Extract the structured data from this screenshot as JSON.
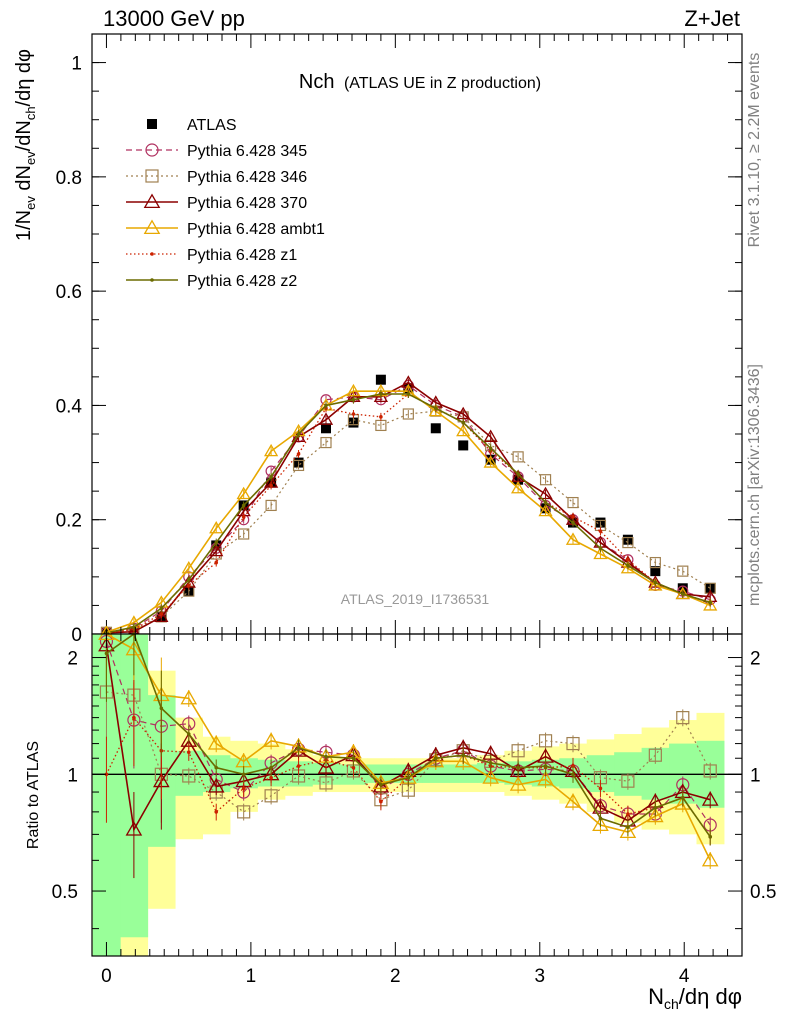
{
  "header": {
    "left": "13000 GeV pp",
    "right": "Z+Jet"
  },
  "side_labels": {
    "top": "Rivet 3.1.10, ≥ 2.2M events",
    "bottom": "mcplots.cern.ch [arXiv:1306.3436]"
  },
  "watermark": "ATLAS_2019_I1736531",
  "chart_data": [
    {
      "type": "line",
      "title": "Nch",
      "subtitle": "(ATLAS UE in Z production)",
      "ylabel": "1/N_ev dN_ev/dN_ch/dη dφ",
      "xlim": [
        -0.1,
        4.4
      ],
      "ylim": [
        0,
        1.05
      ],
      "y_ticks": [
        "0",
        "0.2",
        "0.4",
        "0.6",
        "0.8",
        "1"
      ],
      "x": [
        0.0,
        0.19,
        0.38,
        0.57,
        0.76,
        0.95,
        1.14,
        1.33,
        1.52,
        1.71,
        1.9,
        2.09,
        2.28,
        2.47,
        2.66,
        2.85,
        3.04,
        3.23,
        3.42,
        3.61,
        3.8,
        3.99,
        4.18
      ],
      "series": [
        {
          "name": "ATLAS",
          "color": "#000000",
          "values": [
            0.002,
            0.005,
            0.03,
            0.075,
            0.155,
            0.225,
            0.265,
            0.3,
            0.36,
            0.37,
            0.445,
            0.43,
            0.36,
            0.33,
            0.305,
            0.27,
            0.22,
            0.195,
            0.195,
            0.165,
            0.11,
            0.08,
            0.08
          ]
        },
        {
          "name": "Pythia 6.428 345",
          "color": "#b03060",
          "values": [
            0.003,
            0.01,
            0.04,
            0.1,
            0.15,
            0.2,
            0.285,
            0.345,
            0.41,
            0.415,
            0.41,
            0.435,
            0.4,
            0.38,
            0.315,
            0.275,
            0.225,
            0.2,
            0.16,
            0.13,
            0.085,
            0.075,
            0.06
          ]
        },
        {
          "name": "Pythia 6.428 346",
          "color": "#a08050",
          "values": [
            0.003,
            0.008,
            0.03,
            0.075,
            0.14,
            0.175,
            0.225,
            0.295,
            0.335,
            0.375,
            0.365,
            0.385,
            0.39,
            0.38,
            0.33,
            0.31,
            0.27,
            0.23,
            0.19,
            0.16,
            0.125,
            0.11,
            0.08
          ]
        },
        {
          "name": "Pythia 6.428 370",
          "color": "#8b0000",
          "values": [
            0.002,
            0.004,
            0.03,
            0.09,
            0.145,
            0.215,
            0.265,
            0.345,
            0.375,
            0.415,
            0.415,
            0.44,
            0.405,
            0.385,
            0.345,
            0.275,
            0.245,
            0.2,
            0.16,
            0.125,
            0.09,
            0.07,
            0.065
          ]
        },
        {
          "name": "Pythia 6.428 ambt1",
          "color": "#e8a800",
          "values": [
            0.003,
            0.02,
            0.055,
            0.115,
            0.185,
            0.245,
            0.32,
            0.355,
            0.4,
            0.425,
            0.425,
            0.425,
            0.39,
            0.355,
            0.3,
            0.255,
            0.215,
            0.165,
            0.14,
            0.115,
            0.085,
            0.07,
            0.05
          ]
        },
        {
          "name": "Pythia 6.428 z1",
          "color": "#cc2200",
          "values": [
            0.002,
            0.008,
            0.035,
            0.085,
            0.125,
            0.205,
            0.26,
            0.315,
            0.395,
            0.385,
            0.38,
            0.42,
            0.395,
            0.37,
            0.32,
            0.28,
            0.23,
            0.205,
            0.18,
            0.13,
            0.09,
            0.07,
            0.055
          ]
        },
        {
          "name": "Pythia 6.428 z2",
          "color": "#6b6b00",
          "values": [
            0.002,
            0.012,
            0.045,
            0.095,
            0.16,
            0.225,
            0.275,
            0.35,
            0.4,
            0.41,
            0.42,
            0.42,
            0.395,
            0.37,
            0.325,
            0.28,
            0.23,
            0.195,
            0.15,
            0.12,
            0.09,
            0.07,
            0.055
          ]
        }
      ]
    },
    {
      "type": "line",
      "ylabel": "Ratio to ATLAS",
      "xlabel": "N_ch/dη dφ",
      "xlim": [
        -0.1,
        4.4
      ],
      "ylim": [
        0.34,
        2.3
      ],
      "y_scale": "log",
      "y_ticks": [
        "0.5",
        "1",
        "2"
      ],
      "x_ticks": [
        "0",
        "1",
        "2",
        "3",
        "4"
      ],
      "reference": 1,
      "x": [
        0.0,
        0.19,
        0.38,
        0.57,
        0.76,
        0.95,
        1.14,
        1.33,
        1.52,
        1.71,
        1.9,
        2.09,
        2.28,
        2.47,
        2.66,
        2.85,
        3.04,
        3.23,
        3.42,
        3.61,
        3.8,
        3.99,
        4.18
      ],
      "band_green": [
        [
          0.15,
          2.3
        ],
        [
          0.38,
          2.3
        ],
        [
          0.65,
          1.6
        ],
        [
          0.88,
          1.15
        ],
        [
          0.9,
          1.12
        ],
        [
          0.92,
          1.1
        ],
        [
          0.93,
          1.09
        ],
        [
          0.93,
          1.08
        ],
        [
          0.94,
          1.07
        ],
        [
          0.94,
          1.06
        ],
        [
          0.95,
          1.06
        ],
        [
          0.95,
          1.06
        ],
        [
          0.95,
          1.06
        ],
        [
          0.95,
          1.06
        ],
        [
          0.95,
          1.07
        ],
        [
          0.94,
          1.08
        ],
        [
          0.93,
          1.09
        ],
        [
          0.92,
          1.1
        ],
        [
          0.9,
          1.12
        ],
        [
          0.88,
          1.14
        ],
        [
          0.86,
          1.17
        ],
        [
          0.84,
          1.2
        ],
        [
          0.82,
          1.22
        ]
      ],
      "band_yellow": [
        [
          0.1,
          2.3
        ],
        [
          0.34,
          2.3
        ],
        [
          0.45,
          1.85
        ],
        [
          0.68,
          1.4
        ],
        [
          0.7,
          1.25
        ],
        [
          0.8,
          1.22
        ],
        [
          0.86,
          1.2
        ],
        [
          0.88,
          1.16
        ],
        [
          0.9,
          1.12
        ],
        [
          0.9,
          1.1
        ],
        [
          0.9,
          1.1
        ],
        [
          0.9,
          1.1
        ],
        [
          0.9,
          1.1
        ],
        [
          0.9,
          1.1
        ],
        [
          0.9,
          1.12
        ],
        [
          0.88,
          1.15
        ],
        [
          0.86,
          1.18
        ],
        [
          0.84,
          1.2
        ],
        [
          0.8,
          1.23
        ],
        [
          0.75,
          1.27
        ],
        [
          0.72,
          1.32
        ],
        [
          0.7,
          1.38
        ],
        [
          0.66,
          1.44
        ]
      ],
      "series": [
        {
          "name": "Pythia 6.428 345",
          "values": [
            2.2,
            1.38,
            1.33,
            1.35,
            0.97,
            0.9,
            1.07,
            1.16,
            1.14,
            1.12,
            0.92,
            1.0,
            1.1,
            1.15,
            1.05,
            1.02,
            1.03,
            1.02,
            0.83,
            0.79,
            0.79,
            0.94,
            0.74
          ]
        },
        {
          "name": "Pythia 6.428 346",
          "values": [
            1.63,
            1.6,
            1.0,
            0.99,
            0.9,
            0.8,
            0.88,
            0.99,
            0.95,
            1.02,
            0.86,
            0.91,
            1.09,
            1.15,
            1.08,
            1.15,
            1.22,
            1.2,
            0.98,
            0.96,
            1.12,
            1.4,
            1.02
          ]
        },
        {
          "name": "Pythia 6.428 370",
          "values": [
            2.15,
            0.72,
            0.96,
            1.22,
            0.93,
            0.96,
            1.0,
            1.15,
            1.04,
            1.12,
            0.93,
            1.02,
            1.12,
            1.17,
            1.13,
            1.02,
            1.11,
            1.02,
            0.82,
            0.76,
            0.85,
            0.9,
            0.86
          ]
        },
        {
          "name": "Pythia 6.428 ambt1",
          "values": [
            2.3,
            2.1,
            1.6,
            1.57,
            1.2,
            1.08,
            1.22,
            1.18,
            1.11,
            1.14,
            0.95,
            0.98,
            1.08,
            1.08,
            0.98,
            0.94,
            0.97,
            0.85,
            0.74,
            0.71,
            0.78,
            0.84,
            0.6
          ]
        },
        {
          "name": "Pythia 6.428 z1",
          "values": [
            1.0,
            1.4,
            1.15,
            1.14,
            0.8,
            0.92,
            0.98,
            1.05,
            1.09,
            1.04,
            0.85,
            0.98,
            1.1,
            1.12,
            1.05,
            1.04,
            1.04,
            1.05,
            0.92,
            0.79,
            0.82,
            0.87,
            0.69
          ]
        },
        {
          "name": "Pythia 6.428 z2",
          "values": [
            2.05,
            2.4,
            1.48,
            1.27,
            1.04,
            1.0,
            1.04,
            1.17,
            1.11,
            1.1,
            0.94,
            0.98,
            1.1,
            1.12,
            1.07,
            1.04,
            1.05,
            1.0,
            0.77,
            0.73,
            0.82,
            0.87,
            0.69
          ]
        }
      ]
    }
  ]
}
